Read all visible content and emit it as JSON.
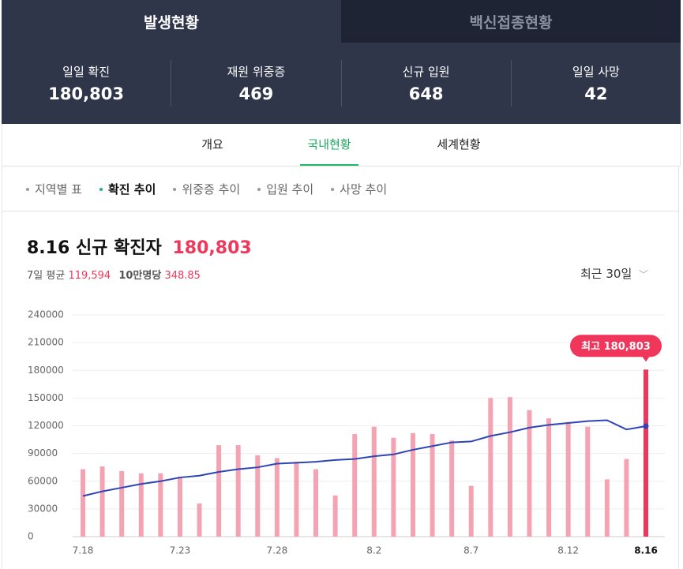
{
  "top_tabs": [
    "발생현황",
    "백신접종현황"
  ],
  "stats": [
    {
      "label": "일일 확진",
      "value": "180,803"
    },
    {
      "label": "재원 위중증",
      "value": "469"
    },
    {
      "label": "신규 입원",
      "value": "648"
    },
    {
      "label": "일일 사망",
      "value": "42"
    }
  ],
  "nav_tabs": [
    "개요",
    "국내현황",
    "세계현황"
  ],
  "sub_tabs": [
    "지역별 표",
    "확진 추이",
    "위중증 추이",
    "입원 추이",
    "사망 추이"
  ],
  "heading": {
    "title": "8.16 신규 확진자",
    "value": "180,803",
    "avg_label": "7일 평균",
    "avg_value": "119,594",
    "per_label": "10만명당",
    "per_value": "348.85",
    "period": "최근 30일"
  },
  "chart_data": {
    "type": "bar",
    "categories": [
      "7.18",
      null,
      null,
      null,
      null,
      "7.23",
      null,
      null,
      null,
      null,
      "7.28",
      null,
      null,
      null,
      null,
      "8.2",
      null,
      null,
      null,
      null,
      "8.7",
      null,
      null,
      null,
      null,
      "8.12",
      null,
      null,
      null,
      "8.16"
    ],
    "series": [
      {
        "type": "bar",
        "color": "#f4a3b3",
        "highlight_color": "#f0365a",
        "values": [
          73000,
          76000,
          71000,
          68500,
          68600,
          65000,
          35900,
          99000,
          99000,
          88000,
          85000,
          81000,
          73000,
          44600,
          111000,
          119000,
          107000,
          112000,
          111000,
          104000,
          55000,
          150000,
          151000,
          137000,
          128000,
          124000,
          119000,
          62000,
          84000,
          180803
        ]
      },
      {
        "type": "line",
        "color": "#2f45b5",
        "values": [
          44000,
          49000,
          53000,
          57000,
          60000,
          64000,
          66000,
          70000,
          73000,
          75000,
          79000,
          80000,
          81000,
          83000,
          84000,
          87000,
          89000,
          94000,
          98000,
          102000,
          103000,
          109000,
          113000,
          118000,
          121000,
          123000,
          125000,
          126000,
          116000,
          119594
        ]
      }
    ],
    "annotation": "최고 180,803",
    "ylim": [
      0,
      240000
    ],
    "yticks": [
      0,
      30000,
      60000,
      90000,
      120000,
      150000,
      180000,
      210000,
      240000
    ],
    "grid": true
  }
}
